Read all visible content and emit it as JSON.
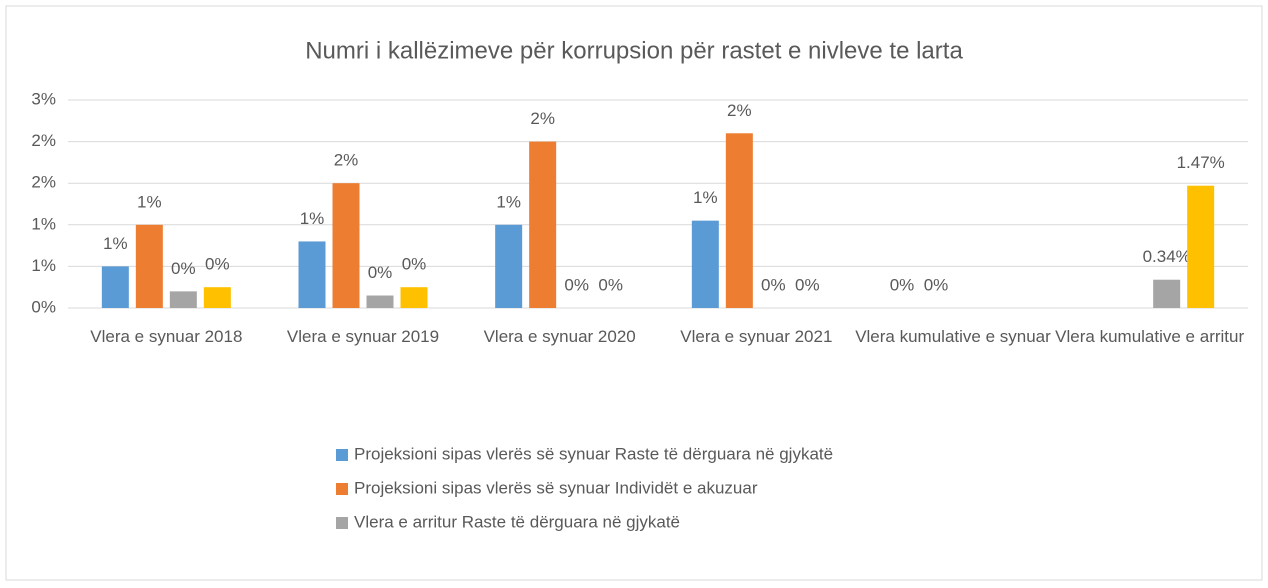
{
  "chart_data": {
    "type": "bar",
    "title": "Numri i kallëzimeve për korrupsion për rastet e nivleve te larta",
    "categories": [
      "Vlera e synuar 2018",
      "Vlera e synuar 2019",
      "Vlera e synuar 2020",
      "Vlera e synuar 2021",
      "Vlera kumulative e synuar",
      "Vlera kumulative e arritur"
    ],
    "series": [
      {
        "name": "Projeksioni sipas vlerës së synuar Raste të dërguara në gjykatë",
        "color": "#5b9bd5",
        "values": [
          0.5,
          0.8,
          1.0,
          1.05,
          0,
          null
        ],
        "value_labels": [
          "1%",
          "1%",
          "1%",
          "1%",
          "0%",
          null
        ]
      },
      {
        "name": "Projeksioni sipas vlerës së synuar Individët e akuzuar",
        "color": "#ed7d31",
        "values": [
          1.0,
          1.5,
          2.0,
          2.1,
          0,
          null
        ],
        "value_labels": [
          "1%",
          "2%",
          "2%",
          "2%",
          "0%",
          null
        ]
      },
      {
        "name": "Vlera e arritur  Raste të dërguara në gjykatë",
        "color": "#a5a5a5",
        "values": [
          0.2,
          0.15,
          0,
          0,
          null,
          0.34
        ],
        "value_labels": [
          "0%",
          "0%",
          "0%",
          "0%",
          null,
          "0.34%"
        ]
      },
      {
        "color": "#ffc000",
        "values": [
          0.25,
          0.25,
          0,
          0,
          null,
          1.47
        ],
        "value_labels": [
          "0%",
          "0%",
          "0%",
          "0%",
          null,
          "1.47%"
        ]
      }
    ],
    "ylim": [
      0,
      2.5
    ],
    "yticks": [
      {
        "value": 0,
        "label": "0%"
      },
      {
        "value": 0.5,
        "label": "1%"
      },
      {
        "value": 1,
        "label": "1%"
      },
      {
        "value": 1.5,
        "label": "2%"
      },
      {
        "value": 2,
        "label": "2%"
      },
      {
        "value": 2.5,
        "label": "3%"
      }
    ],
    "grid": true
  }
}
